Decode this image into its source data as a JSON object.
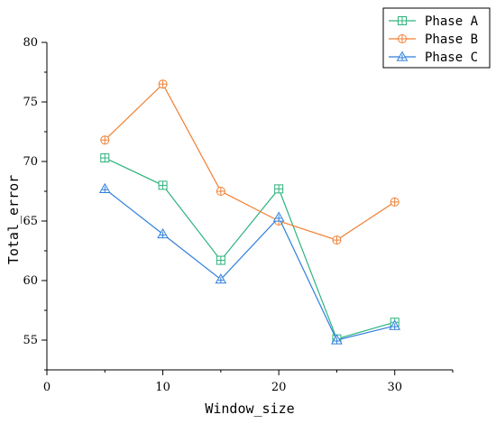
{
  "chart_data": {
    "type": "line",
    "title": "",
    "xlabel": "Window_size",
    "ylabel": "Total_error",
    "xlim": [
      0,
      35
    ],
    "ylim": [
      52.5,
      80
    ],
    "xticks": [
      0,
      10,
      20,
      30
    ],
    "yticks": [
      55,
      60,
      65,
      70,
      75,
      80
    ],
    "x": [
      5,
      10,
      15,
      20,
      25,
      30
    ],
    "grid": false,
    "legend": "top-right",
    "series": [
      {
        "name": "Phase A",
        "color": "#2db37d",
        "marker": "square-plus",
        "values": [
          70.3,
          68.0,
          61.7,
          67.7,
          55.1,
          56.5
        ]
      },
      {
        "name": "Phase B",
        "color": "#f07f33",
        "marker": "circle-plus",
        "values": [
          71.8,
          76.5,
          67.5,
          65.0,
          63.4,
          66.6
        ]
      },
      {
        "name": "Phase C",
        "color": "#2f7fdc",
        "marker": "triangle-plus",
        "values": [
          67.7,
          63.9,
          60.1,
          65.3,
          55.0,
          56.2
        ]
      }
    ]
  }
}
